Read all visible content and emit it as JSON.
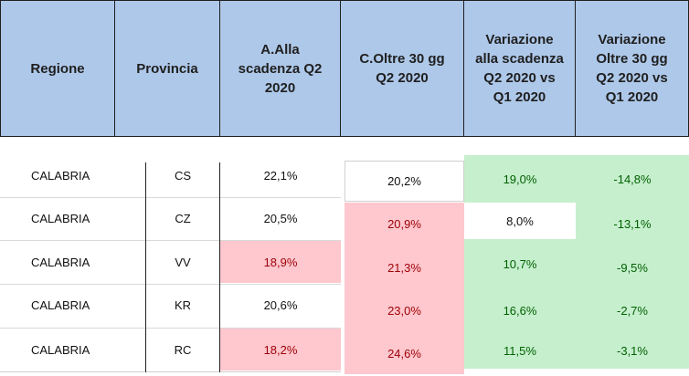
{
  "header": {
    "columns": [
      "Regione",
      "Provincia",
      "A.Alla\nscadenza Q2\n2020",
      "C.Oltre 30 gg\nQ2 2020",
      "Variazione\nalla scadenza\nQ2 2020 vs\nQ1 2020",
      "Variazione\nOltre 30 gg\nQ2 2020 vs\nQ1 2020"
    ]
  },
  "rows": [
    {
      "regione": "CALABRIA",
      "provincia": "CS",
      "a": "22,1%",
      "c": "20,2%",
      "var_a": "19,0%",
      "var_c": "-14,8%"
    },
    {
      "regione": "CALABRIA",
      "provincia": "CZ",
      "a": "20,5%",
      "c": "20,9%",
      "var_a": "8,0%",
      "var_c": "-13,1%"
    },
    {
      "regione": "CALABRIA",
      "provincia": "VV",
      "a": "18,9%",
      "c": "21,3%",
      "var_a": "10,7%",
      "var_c": "-9,5%"
    },
    {
      "regione": "CALABRIA",
      "provincia": "KR",
      "a": "20,6%",
      "c": "23,0%",
      "var_a": "16,6%",
      "var_c": "-2,7%"
    },
    {
      "regione": "CALABRIA",
      "provincia": "RC",
      "a": "18,2%",
      "c": "24,6%",
      "var_a": "11,5%",
      "var_c": "-3,1%"
    }
  ],
  "colors": {
    "header_bg": "#aec8e9",
    "red_fill": "#ffc7ce",
    "red_text": "#9c0006",
    "green_fill": "#c6efce",
    "green_text": "#006100"
  }
}
